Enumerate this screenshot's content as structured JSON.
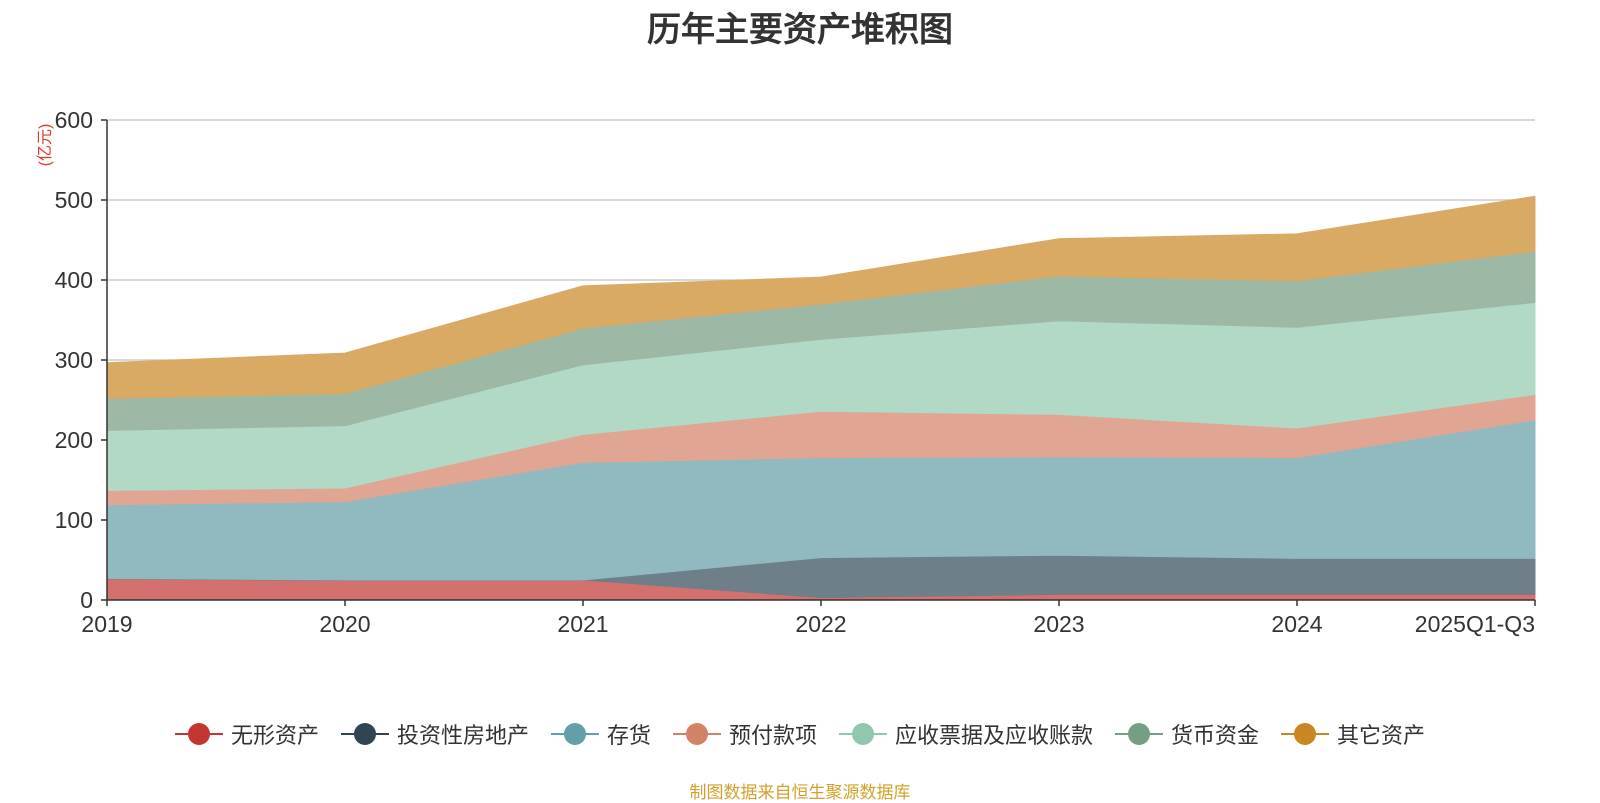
{
  "chart_data": {
    "type": "area",
    "stacked": true,
    "title": "历年主要资产堆积图",
    "ylabel": "(亿元)",
    "xlabel": "",
    "categories": [
      "2019",
      "2020",
      "2021",
      "2022",
      "2023",
      "2024",
      "2025Q1-Q3"
    ],
    "ylim": [
      0,
      600
    ],
    "yticks": [
      0,
      100,
      200,
      300,
      400,
      500,
      600
    ],
    "grid": true,
    "legend_position": "bottom",
    "series": [
      {
        "name": "无形资产",
        "color": "#c23531",
        "fill": "#d4706e",
        "values": [
          27,
          25,
          25,
          3,
          7,
          7,
          7
        ]
      },
      {
        "name": "投资性房地产",
        "color": "#2f4554",
        "fill": "#6e7f89",
        "values": [
          0,
          0,
          0,
          50,
          49,
          45,
          45
        ]
      },
      {
        "name": "存货",
        "color": "#61a0a8",
        "fill": "#90b9c0",
        "values": [
          92,
          98,
          147,
          125,
          123,
          126,
          173
        ]
      },
      {
        "name": "预付款项",
        "color": "#d48265",
        "fill": "#e0a693",
        "values": [
          18,
          17,
          35,
          58,
          53,
          37,
          32
        ]
      },
      {
        "name": "应收票据及应收账款",
        "color": "#91c7ae",
        "fill": "#b2d8c6",
        "values": [
          75,
          78,
          87,
          90,
          117,
          126,
          115
        ]
      },
      {
        "name": "货币资金",
        "color": "#749f83",
        "fill": "#9db8a5",
        "values": [
          40,
          40,
          46,
          44,
          56,
          58,
          64
        ]
      },
      {
        "name": "其它资产",
        "color": "#ca8622",
        "fill": "#d9aa63",
        "values": [
          44,
          50,
          52,
          33,
          46,
          58,
          68
        ]
      }
    ]
  },
  "source_note": "制图数据来自恒生聚源数据库"
}
